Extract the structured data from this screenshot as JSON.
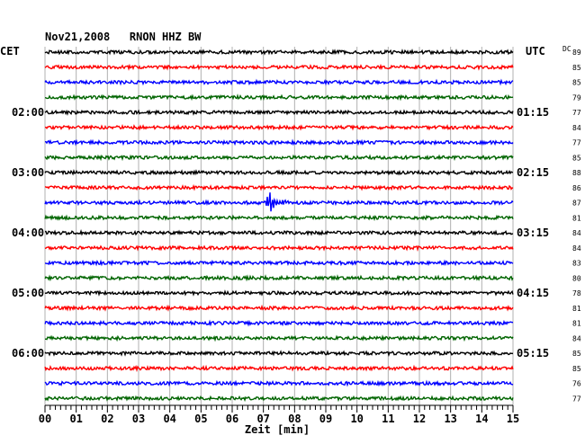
{
  "header": {
    "title": "Nov21,2008   RNON HHZ BW",
    "left_timezone": "CET",
    "right_timezone": "UTC",
    "dc_label": "DC"
  },
  "chart_data": {
    "type": "line",
    "title": "Nov21,2008   RNON HHZ BW",
    "xlabel": "Zeit [min]",
    "ylabel": "",
    "xlim": [
      0,
      15
    ],
    "x_ticks": [
      "00",
      "01",
      "02",
      "03",
      "04",
      "05",
      "06",
      "07",
      "08",
      "09",
      "10",
      "11",
      "12",
      "13",
      "14",
      "15"
    ],
    "left_time_labels": [
      {
        "row": 4,
        "label": "02:00"
      },
      {
        "row": 8,
        "label": "03:00"
      },
      {
        "row": 12,
        "label": "04:00"
      },
      {
        "row": 16,
        "label": "05:00"
      },
      {
        "row": 20,
        "label": "06:00"
      }
    ],
    "right_time_labels": [
      {
        "row": 4,
        "label": "01:15"
      },
      {
        "row": 8,
        "label": "02:15"
      },
      {
        "row": 12,
        "label": "03:15"
      },
      {
        "row": 16,
        "label": "04:15"
      },
      {
        "row": 20,
        "label": "05:15"
      }
    ],
    "trace_colors": [
      "#000000",
      "#ff0000",
      "#0000ff",
      "#006400"
    ],
    "dc_values": [
      "89",
      "85",
      "85",
      "79",
      "77",
      "84",
      "77",
      "85",
      "88",
      "86",
      "87",
      "81",
      "84",
      "84",
      "83",
      "80",
      "78",
      "81",
      "81",
      "84",
      "85",
      "85",
      "76",
      "77"
    ],
    "event": {
      "row": 10,
      "x_min": 7.0,
      "x_max": 8.0
    },
    "grid": true
  }
}
